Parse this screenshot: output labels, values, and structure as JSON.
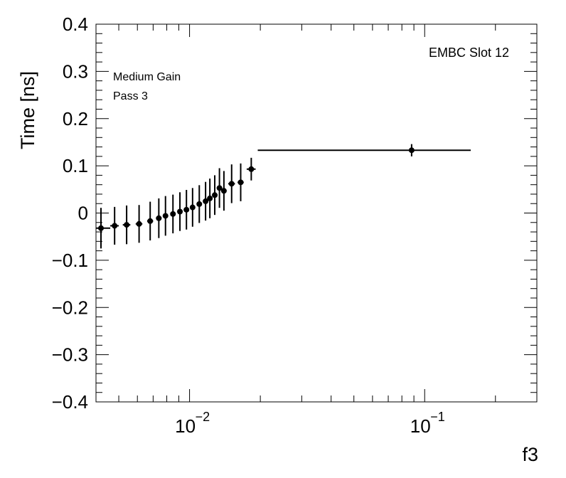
{
  "chart_data": {
    "type": "scatter",
    "xlabel": "f3",
    "ylabel": "Time [ns]",
    "xscale": "log",
    "xlim": [
      0.004,
      0.3
    ],
    "ylim": [
      -0.4,
      0.4
    ],
    "grid": false,
    "annotations": {
      "top_right": "EMBC Slot 12",
      "gain": "Medium Gain",
      "pass": "Pass 3"
    },
    "y_ticks": [
      {
        "value": 0.4,
        "label": "0.4"
      },
      {
        "value": 0.3,
        "label": "0.3"
      },
      {
        "value": 0.2,
        "label": "0.2"
      },
      {
        "value": 0.1,
        "label": "0.1"
      },
      {
        "value": 0,
        "label": "0"
      },
      {
        "value": -0.1,
        "label": "−0.1"
      },
      {
        "value": -0.2,
        "label": "−0.2"
      },
      {
        "value": -0.3,
        "label": "−0.3"
      },
      {
        "value": -0.4,
        "label": "−0.4"
      }
    ],
    "x_ticks": [
      {
        "value": 0.01,
        "label_base": "10",
        "label_exp": "−2"
      },
      {
        "value": 0.1,
        "label_base": "10",
        "label_exp": "−1"
      }
    ],
    "points": [
      {
        "x": 0.0042,
        "y": -0.032,
        "yerr": 0.043,
        "xlo": 0.004,
        "xhi": 0.0046
      },
      {
        "x": 0.0048,
        "y": -0.027,
        "yerr": 0.04,
        "xlo": 0.0046,
        "xhi": 0.005
      },
      {
        "x": 0.0054,
        "y": -0.025,
        "yerr": 0.041,
        "xlo": 0.0052,
        "xhi": 0.0056
      },
      {
        "x": 0.0061,
        "y": -0.023,
        "yerr": 0.04,
        "xlo": 0.0059,
        "xhi": 0.0063
      },
      {
        "x": 0.0068,
        "y": -0.017,
        "yerr": 0.041,
        "xlo": 0.0066,
        "xhi": 0.007
      },
      {
        "x": 0.0074,
        "y": -0.011,
        "yerr": 0.042,
        "xlo": 0.0072,
        "xhi": 0.0076
      },
      {
        "x": 0.0079,
        "y": -0.006,
        "yerr": 0.042,
        "xlo": 0.0077,
        "xhi": 0.0081
      },
      {
        "x": 0.0085,
        "y": -0.002,
        "yerr": 0.041,
        "xlo": 0.0083,
        "xhi": 0.0087
      },
      {
        "x": 0.0091,
        "y": 0.003,
        "yerr": 0.041,
        "xlo": 0.0089,
        "xhi": 0.0093
      },
      {
        "x": 0.0097,
        "y": 0.007,
        "yerr": 0.042,
        "xlo": 0.0095,
        "xhi": 0.0099
      },
      {
        "x": 0.0103,
        "y": 0.012,
        "yerr": 0.041,
        "xlo": 0.0101,
        "xhi": 0.0105
      },
      {
        "x": 0.011,
        "y": 0.019,
        "yerr": 0.04,
        "xlo": 0.0108,
        "xhi": 0.0112
      },
      {
        "x": 0.0117,
        "y": 0.025,
        "yerr": 0.041,
        "xlo": 0.0115,
        "xhi": 0.0119
      },
      {
        "x": 0.0122,
        "y": 0.031,
        "yerr": 0.042,
        "xlo": 0.012,
        "xhi": 0.0124
      },
      {
        "x": 0.0128,
        "y": 0.038,
        "yerr": 0.042,
        "xlo": 0.0126,
        "xhi": 0.013
      },
      {
        "x": 0.0134,
        "y": 0.053,
        "yerr": 0.042,
        "xlo": 0.0132,
        "xhi": 0.0136
      },
      {
        "x": 0.014,
        "y": 0.047,
        "yerr": 0.042,
        "xlo": 0.0138,
        "xhi": 0.0142
      },
      {
        "x": 0.0151,
        "y": 0.062,
        "yerr": 0.041,
        "xlo": 0.0146,
        "xhi": 0.0156
      },
      {
        "x": 0.0165,
        "y": 0.065,
        "yerr": 0.04,
        "xlo": 0.016,
        "xhi": 0.017
      },
      {
        "x": 0.0183,
        "y": 0.093,
        "yerr": 0.024,
        "xlo": 0.0175,
        "xhi": 0.0191
      },
      {
        "x": 0.088,
        "y": 0.133,
        "yerr": 0.013,
        "xlo": 0.0195,
        "xhi": 0.157
      }
    ]
  }
}
